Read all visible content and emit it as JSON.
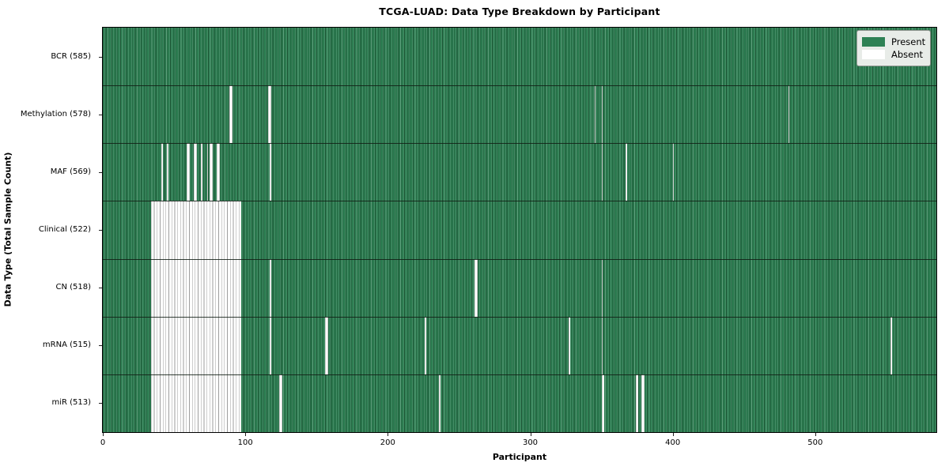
{
  "chart_data": {
    "type": "heatmap",
    "title": "TCGA-LUAD: Data Type Breakdown by Participant",
    "xlabel": "Participant",
    "ylabel": "Data Type (Total Sample Count)",
    "x_ticks": [
      0,
      100,
      200,
      300,
      400,
      500
    ],
    "x_max": 585,
    "grid": false,
    "legend_position": "upper right",
    "legend": [
      {
        "label": "Present",
        "color": "#2e8154"
      },
      {
        "label": "Absent",
        "color": "#ffffff"
      }
    ],
    "rows": [
      {
        "label": "BCR (585)",
        "data_type": "BCR",
        "present_count": 585,
        "absent_ranges": []
      },
      {
        "label": "Methylation (578)",
        "data_type": "Methylation",
        "present_count": 578,
        "absent_ranges": [
          [
            89,
            90
          ],
          [
            116,
            117
          ],
          [
            345,
            345
          ],
          [
            350,
            350
          ],
          [
            481,
            481
          ]
        ]
      },
      {
        "label": "MAF (569)",
        "data_type": "MAF",
        "present_count": 569,
        "absent_ranges": [
          [
            41,
            41
          ],
          [
            45,
            45
          ],
          [
            59,
            60
          ],
          [
            64,
            65
          ],
          [
            69,
            69
          ],
          [
            73,
            73
          ],
          [
            75,
            76
          ],
          [
            80,
            81
          ],
          [
            117,
            117
          ],
          [
            350,
            350
          ],
          [
            367,
            367
          ],
          [
            400,
            400
          ]
        ]
      },
      {
        "label": "Clinical (522)",
        "data_type": "Clinical",
        "present_count": 522,
        "absent_ranges": [
          [
            34,
            96
          ]
        ]
      },
      {
        "label": "CN (518)",
        "data_type": "CN",
        "present_count": 518,
        "absent_ranges": [
          [
            34,
            96
          ],
          [
            117,
            117
          ],
          [
            261,
            262
          ],
          [
            350,
            350
          ]
        ]
      },
      {
        "label": "mRNA (515)",
        "data_type": "mRNA",
        "present_count": 515,
        "absent_ranges": [
          [
            34,
            96
          ],
          [
            117,
            117
          ],
          [
            156,
            157
          ],
          [
            226,
            226
          ],
          [
            327,
            327
          ],
          [
            350,
            350
          ],
          [
            553,
            553
          ]
        ]
      },
      {
        "label": "miR (513)",
        "data_type": "miR",
        "present_count": 513,
        "absent_ranges": [
          [
            34,
            96
          ],
          [
            124,
            125
          ],
          [
            236,
            236
          ],
          [
            350,
            351
          ],
          [
            374,
            375
          ],
          [
            378,
            379
          ]
        ]
      }
    ],
    "colors": {
      "present": "#2e8154",
      "absent": "#ffffff",
      "legend_bg": "#e8ece8",
      "plot_border": "#000000"
    }
  }
}
